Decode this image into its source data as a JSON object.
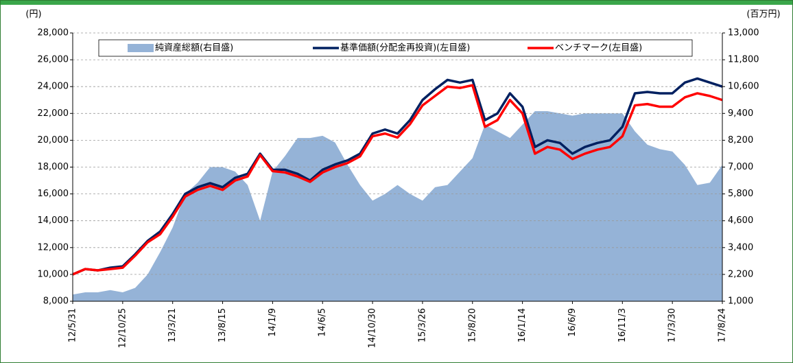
{
  "chart_data": {
    "type": "line",
    "y_label": "(円)",
    "y2_label": "(百万円)",
    "categories": [
      "12/5/31",
      null,
      null,
      null,
      "12/10/25",
      null,
      null,
      null,
      "13/3/21",
      null,
      null,
      null,
      "13/8/15",
      null,
      null,
      null,
      "14/1/9",
      null,
      null,
      null,
      "14/6/5",
      null,
      null,
      null,
      "14/10/30",
      null,
      null,
      null,
      "15/3/26",
      null,
      null,
      null,
      "15/8/20",
      null,
      null,
      null,
      "16/1/14",
      null,
      null,
      null,
      "16/6/9",
      null,
      null,
      null,
      "16/11/3",
      null,
      null,
      null,
      "17/3/30",
      null,
      null,
      null,
      "17/8/24"
    ],
    "ylim": [
      8000,
      28000
    ],
    "yticks": [
      {
        "value": 8000,
        "label": "8,000"
      },
      {
        "value": 10000,
        "label": "10,000"
      },
      {
        "value": 12000,
        "label": "12,000"
      },
      {
        "value": 14000,
        "label": "14,000"
      },
      {
        "value": 16000,
        "label": "16,000"
      },
      {
        "value": 18000,
        "label": "18,000"
      },
      {
        "value": 20000,
        "label": "20,000"
      },
      {
        "value": 22000,
        "label": "22,000"
      },
      {
        "value": 24000,
        "label": "24,000"
      },
      {
        "value": 26000,
        "label": "26,000"
      },
      {
        "value": 28000,
        "label": "28,000"
      }
    ],
    "y2lim": [
      1000,
      13000
    ],
    "y2ticks": [
      {
        "value": 1000,
        "label": "1,000"
      },
      {
        "value": 2200,
        "label": "2,200"
      },
      {
        "value": 3400,
        "label": "3,400"
      },
      {
        "value": 4600,
        "label": "4,600"
      },
      {
        "value": 5800,
        "label": "5,800"
      },
      {
        "value": 7000,
        "label": "7,000"
      },
      {
        "value": 8200,
        "label": "8,200"
      },
      {
        "value": 9400,
        "label": "9,400"
      },
      {
        "value": 10600,
        "label": "10,600"
      },
      {
        "value": 11800,
        "label": "11,800"
      },
      {
        "value": 13000,
        "label": "13,000"
      }
    ],
    "grid": true,
    "legend": "top",
    "series": [
      {
        "name": "純資産総額(右目盛)",
        "type": "area",
        "axis": "y2",
        "color": "#95b3d7",
        "values": [
          1300,
          1400,
          1400,
          1500,
          1400,
          1600,
          2200,
          3200,
          4300,
          5800,
          6300,
          7000,
          7000,
          6800,
          6200,
          4600,
          6800,
          7500,
          8300,
          8300,
          8400,
          8100,
          7100,
          6200,
          5500,
          5800,
          6200,
          5800,
          5500,
          6100,
          6200,
          6800,
          7400,
          8900,
          8600,
          8300,
          8900,
          9500,
          9500,
          9400,
          9300,
          9400,
          9400,
          9400,
          9400,
          8600,
          8000,
          7800,
          7700,
          7100,
          6200,
          6300,
          7100
        ]
      },
      {
        "name": "基準価額(分配金再投資)(左目盛)",
        "type": "line",
        "color": "#002060",
        "values": [
          10000,
          10400,
          10300,
          10500,
          10600,
          11500,
          12500,
          13200,
          14500,
          16000,
          16500,
          16800,
          16500,
          17200,
          17500,
          19000,
          17800,
          17800,
          17500,
          17000,
          17800,
          18200,
          18500,
          19000,
          20500,
          20800,
          20500,
          21500,
          23000,
          23800,
          24500,
          24300,
          24500,
          21500,
          22000,
          23500,
          22500,
          19500,
          20000,
          19800,
          19000,
          19500,
          19800,
          20000,
          21000,
          23500,
          23600,
          23500,
          23500,
          24300,
          24600,
          24300,
          24000
        ]
      },
      {
        "name": "ベンチマーク(左目盛)",
        "type": "line",
        "color": "#ff0000",
        "values": [
          10000,
          10400,
          10300,
          10400,
          10500,
          11400,
          12400,
          13000,
          14300,
          15800,
          16300,
          16600,
          16300,
          17000,
          17300,
          18900,
          17700,
          17600,
          17300,
          16900,
          17600,
          18000,
          18300,
          18800,
          20300,
          20500,
          20200,
          21200,
          22600,
          23300,
          24000,
          23900,
          24100,
          21000,
          21500,
          23000,
          22000,
          19000,
          19500,
          19300,
          18600,
          19000,
          19300,
          19500,
          20300,
          22600,
          22700,
          22500,
          22500,
          23200,
          23500,
          23300,
          23000
        ]
      }
    ]
  }
}
